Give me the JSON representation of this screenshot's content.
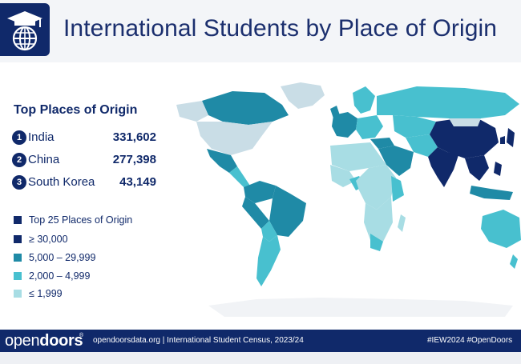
{
  "header": {
    "title": "International Students by Place of Origin",
    "logo_icon": "globe-graduation-cap-icon"
  },
  "top_places": {
    "title": "Top Places of Origin",
    "items": [
      {
        "rank": "1",
        "country": "India",
        "value": "331,602"
      },
      {
        "rank": "2",
        "country": "China",
        "value": "277,398"
      },
      {
        "rank": "3",
        "country": "South Korea",
        "value": "43,149"
      }
    ]
  },
  "legend": {
    "items": [
      {
        "label": "Top 25 Places of Origin",
        "color": "#10296a"
      },
      {
        "label": "≥ 30,000",
        "color": "#10296a"
      },
      {
        "label": "5,000 – 29,999",
        "color": "#1f8aa6"
      },
      {
        "label": "2,000 – 4,999",
        "color": "#48c0cf"
      },
      {
        "label": "≤ 1,999",
        "color": "#a8dde4"
      }
    ]
  },
  "map": {
    "countries": [
      {
        "name": "India",
        "category": "≥ 30,000"
      },
      {
        "name": "China",
        "category": "≥ 30,000"
      },
      {
        "name": "South Korea",
        "category": "≥ 30,000"
      }
    ]
  },
  "footer": {
    "brand_light": "open",
    "brand_bold": "doors",
    "brand_mark": "®",
    "info": "opendoorsdata.org  |  International Student Census, 2023/24",
    "tags": "#IEW2024   #OpenDoors"
  }
}
